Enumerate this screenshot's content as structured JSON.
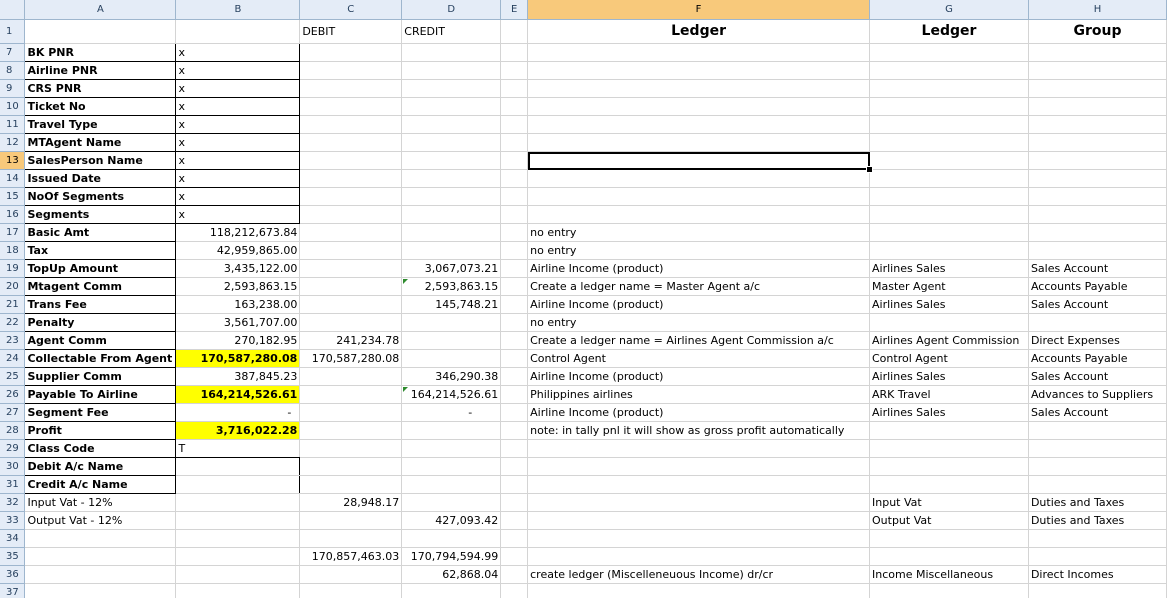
{
  "columns": [
    "A",
    "B",
    "C",
    "D",
    "E",
    "F",
    "G",
    "H"
  ],
  "row_numbers": [
    "1",
    "7",
    "8",
    "9",
    "10",
    "11",
    "12",
    "13",
    "14",
    "15",
    "16",
    "17",
    "18",
    "19",
    "20",
    "21",
    "22",
    "23",
    "24",
    "25",
    "26",
    "27",
    "28",
    "29",
    "30",
    "31",
    "32",
    "33",
    "34",
    "35",
    "36",
    "37"
  ],
  "header_row": {
    "C": "DEBIT",
    "D": "CREDIT",
    "F": "Ledger",
    "G": "Ledger",
    "H": "Group"
  },
  "rows": [
    {
      "A": "BK PNR",
      "B": "x"
    },
    {
      "A": "Airline PNR",
      "B": "x"
    },
    {
      "A": "CRS PNR",
      "B": "x"
    },
    {
      "A": "Ticket No",
      "B": "x"
    },
    {
      "A": "Travel Type",
      "B": "x"
    },
    {
      "A": "MTAgent Name",
      "B": "x"
    },
    {
      "A": "SalesPerson Name",
      "B": "x"
    },
    {
      "A": "Issued Date",
      "B": "x"
    },
    {
      "A": "NoOf Segments",
      "B": "x"
    },
    {
      "A": "Segments",
      "B": "x"
    },
    {
      "A": "Basic Amt",
      "B": "118,212,673.84",
      "F": "no entry"
    },
    {
      "A": "Tax",
      "B": "42,959,865.00",
      "F": "no entry"
    },
    {
      "A": "TopUp Amount",
      "B": "3,435,122.00",
      "D": "3,067,073.21",
      "F": "Airline Income (product)",
      "G": "Airlines Sales",
      "H": "Sales Account"
    },
    {
      "A": "Mtagent Comm",
      "B": "2,593,863.15",
      "D": "2,593,863.15",
      "F": "Create a ledger name = Master Agent a/c",
      "G": "Master Agent",
      "H": "Accounts Payable"
    },
    {
      "A": "Trans Fee",
      "B": "163,238.00",
      "D": "145,748.21",
      "F": "Airline Income (product)",
      "G": "Airlines Sales",
      "H": "Sales Account"
    },
    {
      "A": "Penalty",
      "B": "3,561,707.00",
      "F": "no entry"
    },
    {
      "A": "Agent Comm",
      "B": "270,182.95",
      "C": "241,234.78",
      "F": "Create a ledger name = Airlines Agent Commission a/c",
      "G": "Airlines Agent Commission",
      "H": "Direct Expenses"
    },
    {
      "A": "Collectable From Agent",
      "B": "170,587,280.08",
      "C": "170,587,280.08",
      "F": "Control Agent",
      "G": "Control Agent",
      "H": "Accounts Payable"
    },
    {
      "A": "Supplier Comm",
      "B": "387,845.23",
      "D": "346,290.38",
      "F": "Airline Income (product)",
      "G": "Airlines Sales",
      "H": "Sales Account"
    },
    {
      "A": "Payable To Airline",
      "B": "164,214,526.61",
      "D": "164,214,526.61",
      "F": "Philippines airlines",
      "G": "ARK Travel",
      "H": "Advances to Suppliers"
    },
    {
      "A": "Segment Fee",
      "B": "-",
      "D": "-",
      "F": "Airline Income (product)",
      "G": "Airlines Sales",
      "H": "Sales Account"
    },
    {
      "A": "Profit",
      "B": "3,716,022.28",
      "F": "note: in tally pnl it will show as gross profit automatically"
    },
    {
      "A": "Class Code",
      "B": "T"
    },
    {
      "A": " Debit A/c Name"
    },
    {
      "A": " Credit A/c Name"
    },
    {
      "A": "Input Vat - 12%",
      "C": "28,948.17",
      "G": "Input Vat",
      "H": "Duties and Taxes"
    },
    {
      "A": "Output Vat - 12%",
      "D": "427,093.42",
      "G": "Output Vat",
      "H": "Duties and Taxes"
    },
    {},
    {
      "C": "170,857,463.03",
      "D": "170,794,594.99"
    },
    {
      "D": "62,868.04",
      "F": "create ledger (Miscelleneuous Income)  dr/cr",
      "G": "Income Miscellaneous",
      "H": "Direct Incomes"
    },
    {}
  ],
  "colors": {
    "highlight": "#ffff00",
    "header_bg": "#e4ecf7",
    "selected_header": "#f8c97b"
  }
}
